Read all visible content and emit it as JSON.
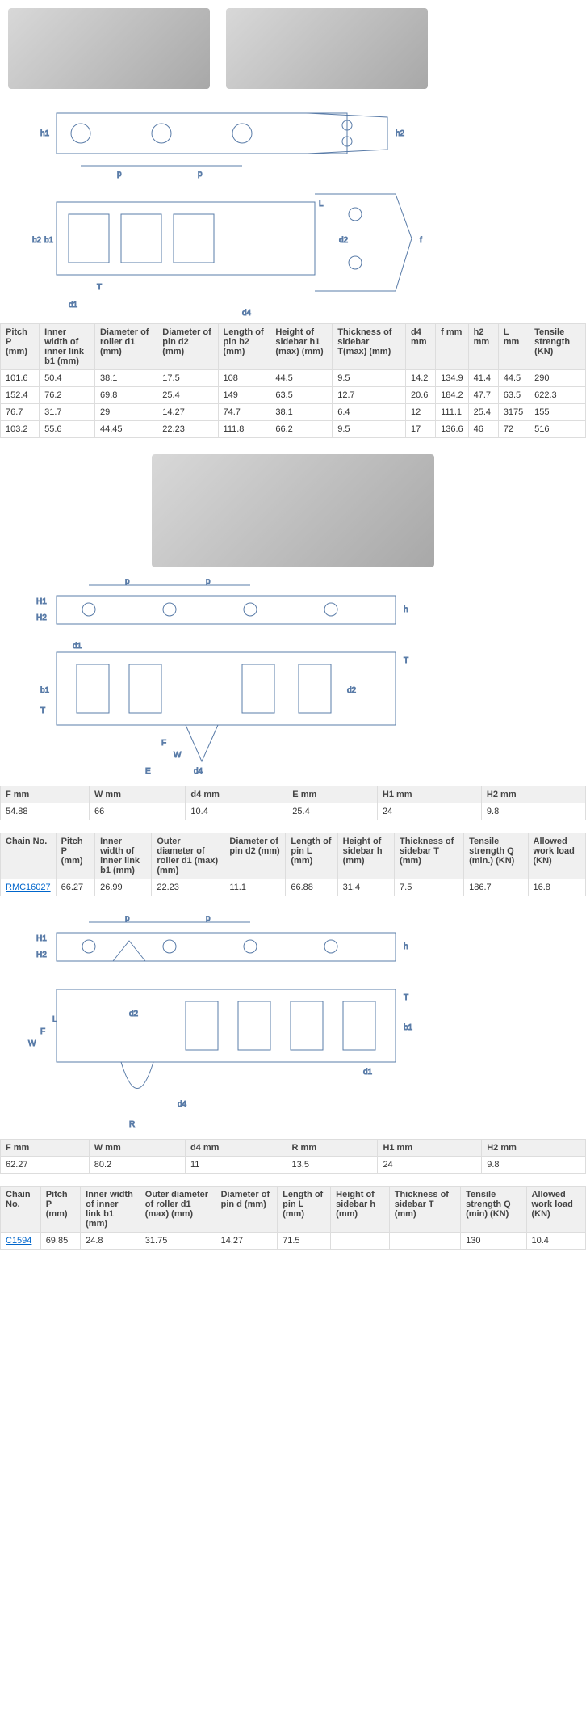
{
  "diagram_style": {
    "stroke": "#5a7ca8",
    "stroke_width": 1,
    "fill": "none",
    "label_color": "#5a7ca8",
    "label_fontsize": 10
  },
  "table_colors": {
    "header_bg": "#f0f0f0",
    "border": "#dddddd",
    "text": "#333333",
    "link": "#0066cc"
  },
  "table1": {
    "headers": [
      "Pitch P (mm)",
      "Inner width of inner link b1 (mm)",
      "Diameter of roller d1 (mm)",
      "Diameter of pin d2 (mm)",
      "Length of pin b2 (mm)",
      "Height of sidebar h1 (max) (mm)",
      "Thickness of sidebar T(max) (mm)",
      "d4 mm",
      "f mm",
      "h2 mm",
      "L mm",
      "Tensile strength (KN)"
    ],
    "rows": [
      [
        "101.6",
        "50.4",
        "38.1",
        "17.5",
        "108",
        "44.5",
        "9.5",
        "14.2",
        "134.9",
        "41.4",
        "44.5",
        "290"
      ],
      [
        "152.4",
        "76.2",
        "69.8",
        "25.4",
        "149",
        "63.5",
        "12.7",
        "20.6",
        "184.2",
        "47.7",
        "63.5",
        "622.3"
      ],
      [
        "76.7",
        "31.7",
        "29",
        "14.27",
        "74.7",
        "38.1",
        "6.4",
        "12",
        "111.1",
        "25.4",
        "3175",
        "155"
      ],
      [
        "103.2",
        "55.6",
        "44.45",
        "22.23",
        "111.8",
        "66.2",
        "9.5",
        "17",
        "136.6",
        "46",
        "72",
        "516"
      ]
    ]
  },
  "table2": {
    "headers": [
      "F mm",
      "W mm",
      "d4 mm",
      "E mm",
      "H1 mm",
      "H2 mm"
    ],
    "rows": [
      [
        "54.88",
        "66",
        "10.4",
        "25.4",
        "24",
        "9.8"
      ]
    ]
  },
  "table3": {
    "headers": [
      "Chain No.",
      "Pitch P (mm)",
      "Inner width of inner link b1 (mm)",
      "Outer diameter of roller d1 (max) (mm)",
      "Diameter of pin d2 (mm)",
      "Length of pin L (mm)",
      "Height of sidebar h (mm)",
      "Thickness of sidebar T (mm)",
      "Tensile strength Q (min.) (KN)",
      "Allowed work load (KN)"
    ],
    "rows": [
      [
        "RMC16027",
        "66.27",
        "26.99",
        "22.23",
        "11.1",
        "66.88",
        "31.4",
        "7.5",
        "186.7",
        "16.8"
      ]
    ],
    "link_col": 0
  },
  "table4": {
    "headers": [
      "F mm",
      "W mm",
      "d4 mm",
      "R mm",
      "H1 mm",
      "H2 mm"
    ],
    "rows": [
      [
        "62.27",
        "80.2",
        "11",
        "13.5",
        "24",
        "9.8"
      ]
    ]
  },
  "table5": {
    "headers": [
      "Chain No.",
      "Pitch P (mm)",
      "Inner width of inner link b1 (mm)",
      "Outer diameter of roller d1 (max) (mm)",
      "Diameter of pin d (mm)",
      "Length of pin L (mm)",
      "Height of sidebar h (mm)",
      "Thickness of sidebar T (mm)",
      "Tensile strength Q (min) (KN)",
      "Allowed work load (KN)"
    ],
    "rows": [
      [
        "C1594",
        "69.85",
        "24.8",
        "31.75",
        "14.27",
        "71.5",
        "",
        "",
        "130",
        "10.4"
      ]
    ],
    "link_col": 0
  },
  "diagram1_labels": {
    "h1": "h1",
    "h2": "h2",
    "p": "p",
    "b1": "b1",
    "b2": "b2",
    "T": "T",
    "d1": "d1",
    "d2": "d2",
    "d4": "d4",
    "L": "L",
    "f": "f"
  },
  "diagram2_labels": {
    "p": "p",
    "H1": "H1",
    "H2": "H2",
    "h": "h",
    "d1": "d1",
    "b1": "b1",
    "T": "T",
    "d2": "d2",
    "d4": "d4",
    "F": "F",
    "W": "W",
    "E": "E"
  },
  "diagram3_labels": {
    "p": "p",
    "H1": "H1",
    "H2": "H2",
    "h": "h",
    "d1": "d1",
    "b1": "b1",
    "T": "T",
    "d2": "d2",
    "d4": "d4",
    "F": "F",
    "W": "W",
    "L": "L",
    "R": "R"
  }
}
